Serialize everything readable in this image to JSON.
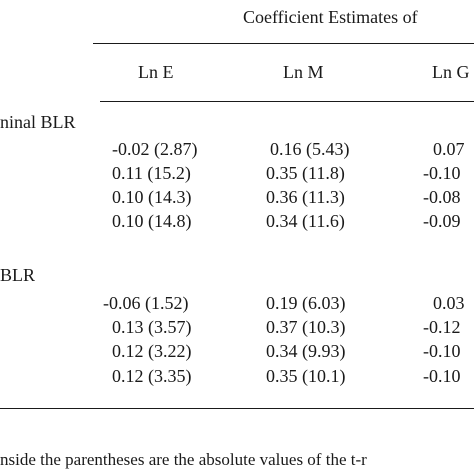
{
  "table": {
    "spanner": "Coefficient Estimates of",
    "columns": [
      "Ln E",
      "Ln M",
      "Ln G"
    ],
    "sections": [
      {
        "label": "ninal BLR",
        "rows": [
          [
            "-0.02 (2.87)",
            "0.16 (5.43)",
            "0.07"
          ],
          [
            "0.11 (15.2)",
            "0.35 (11.8)",
            "-0.10"
          ],
          [
            "0.10 (14.3)",
            "0.36 (11.3)",
            "-0.08"
          ],
          [
            "0.10 (14.8)",
            "0.34 (11.6)",
            "-0.09"
          ]
        ]
      },
      {
        "label": "BLR",
        "rows": [
          [
            "-0.06 (1.52)",
            "0.19 (6.03)",
            "0.03"
          ],
          [
            "0.13 (3.57)",
            "0.37 (10.3)",
            "-0.12"
          ],
          [
            "0.12 (3.22)",
            "0.34 (9.93)",
            "-0.10"
          ],
          [
            "0.12 (3.35)",
            "0.35 (10.1)",
            "-0.10"
          ]
        ]
      }
    ],
    "footnote": "nside the parentheses are the absolute values of the t-r"
  }
}
